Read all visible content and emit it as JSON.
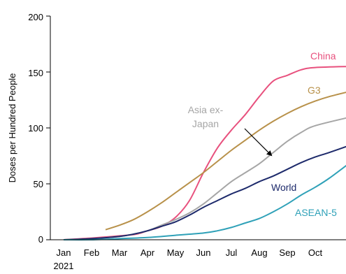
{
  "chart_data": {
    "type": "line",
    "ylabel": "Doses per Hundred People",
    "ylim": [
      0,
      200
    ],
    "yticks": [
      0,
      50,
      100,
      150,
      200
    ],
    "xlim": [
      0,
      10.3
    ],
    "xticks": [
      {
        "label": "Jan",
        "x": 0
      },
      {
        "label": "Feb",
        "x": 1
      },
      {
        "label": "Mar",
        "x": 2
      },
      {
        "label": "Apr",
        "x": 3
      },
      {
        "label": "May",
        "x": 4
      },
      {
        "label": "Jun",
        "x": 5
      },
      {
        "label": "Jul",
        "x": 6
      },
      {
        "label": "Aug",
        "x": 7
      },
      {
        "label": "Sep",
        "x": 8
      },
      {
        "label": "Oct",
        "x": 9
      }
    ],
    "year_label": "2021",
    "grid": false,
    "series": [
      {
        "name": "China",
        "color": "#e8517e",
        "points": [
          [
            0,
            0
          ],
          [
            1,
            1.5
          ],
          [
            2,
            3.5
          ],
          [
            2.6,
            5
          ],
          [
            3,
            8
          ],
          [
            3.5,
            12
          ],
          [
            4,
            20
          ],
          [
            4.5,
            35
          ],
          [
            5,
            60
          ],
          [
            5.5,
            82
          ],
          [
            6,
            98
          ],
          [
            6.5,
            112
          ],
          [
            7,
            128
          ],
          [
            7.5,
            142
          ],
          [
            8,
            147
          ],
          [
            8.5,
            152
          ],
          [
            9,
            154
          ],
          [
            10.3,
            155
          ]
        ]
      },
      {
        "name": "G3",
        "color": "#b8914a",
        "points": [
          [
            1.5,
            9
          ],
          [
            2,
            13
          ],
          [
            2.5,
            18
          ],
          [
            3,
            25
          ],
          [
            3.5,
            33
          ],
          [
            4,
            42
          ],
          [
            4.5,
            51
          ],
          [
            5,
            60
          ],
          [
            5.5,
            70
          ],
          [
            6,
            80
          ],
          [
            6.5,
            89
          ],
          [
            7,
            98
          ],
          [
            7.5,
            106
          ],
          [
            8,
            113
          ],
          [
            8.5,
            119
          ],
          [
            9,
            124
          ],
          [
            9.5,
            128
          ],
          [
            10.3,
            133
          ]
        ]
      },
      {
        "name": "Asia ex-Japan",
        "color": "#a6a6a6",
        "points": [
          [
            0,
            0
          ],
          [
            1,
            1
          ],
          [
            2,
            3
          ],
          [
            2.5,
            5
          ],
          [
            3,
            8
          ],
          [
            3.5,
            13
          ],
          [
            4,
            18
          ],
          [
            4.5,
            24
          ],
          [
            5,
            32
          ],
          [
            5.5,
            42
          ],
          [
            6,
            52
          ],
          [
            6.5,
            60
          ],
          [
            7,
            68
          ],
          [
            7.5,
            78
          ],
          [
            8,
            88
          ],
          [
            8.5,
            96
          ],
          [
            9,
            102
          ],
          [
            10.3,
            110
          ]
        ]
      },
      {
        "name": "World",
        "color": "#1d2a6b",
        "points": [
          [
            0,
            0
          ],
          [
            1,
            1
          ],
          [
            2,
            3
          ],
          [
            2.5,
            5
          ],
          [
            3,
            8
          ],
          [
            3.5,
            12
          ],
          [
            4,
            16
          ],
          [
            4.5,
            22
          ],
          [
            5,
            29
          ],
          [
            5.5,
            35
          ],
          [
            6,
            41
          ],
          [
            6.5,
            46
          ],
          [
            7,
            52
          ],
          [
            7.5,
            57
          ],
          [
            8,
            63
          ],
          [
            8.5,
            69
          ],
          [
            9,
            74
          ],
          [
            9.5,
            78
          ],
          [
            10.3,
            85
          ]
        ]
      },
      {
        "name": "ASEAN-5",
        "color": "#2fa1b8",
        "points": [
          [
            0,
            0
          ],
          [
            1,
            0
          ],
          [
            2,
            1
          ],
          [
            3,
            2
          ],
          [
            4,
            4
          ],
          [
            5,
            6
          ],
          [
            5.5,
            8
          ],
          [
            6,
            11
          ],
          [
            6.5,
            15
          ],
          [
            7,
            19
          ],
          [
            7.5,
            25
          ],
          [
            8,
            32
          ],
          [
            8.5,
            40
          ],
          [
            9,
            47
          ],
          [
            9.5,
            55
          ],
          [
            10.3,
            70
          ]
        ]
      }
    ],
    "annotations": [
      {
        "text": "China",
        "series": "China"
      },
      {
        "text": "G3",
        "series": "G3"
      },
      {
        "text": "Asia ex-",
        "series": "Asia ex-Japan"
      },
      {
        "text": "Japan",
        "series": "Asia ex-Japan"
      },
      {
        "text": "World",
        "series": "World"
      },
      {
        "text": "ASEAN-5",
        "series": "ASEAN-5"
      }
    ]
  }
}
